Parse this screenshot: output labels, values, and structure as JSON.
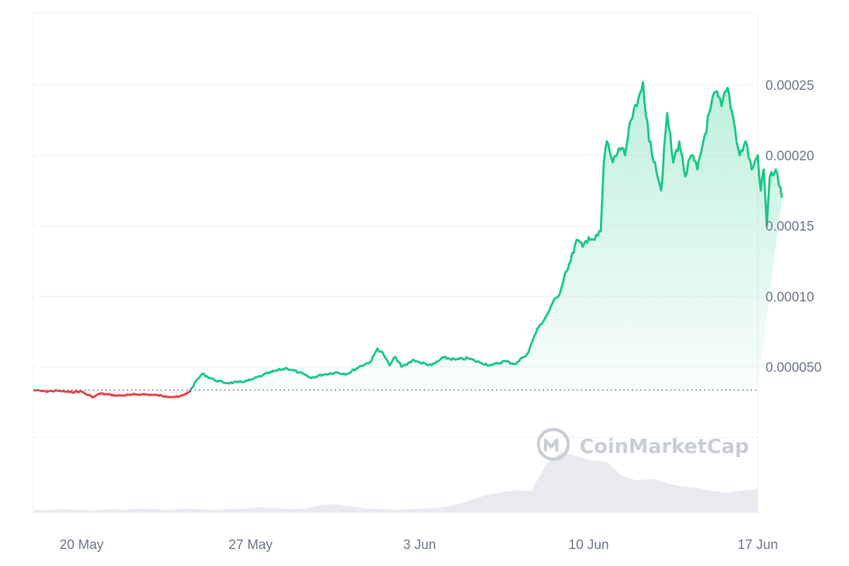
{
  "chart_data": {
    "type": "area",
    "title": "",
    "xlabel": "",
    "ylabel": "",
    "x_range": [
      "2024-05-18",
      "2024-06-17"
    ],
    "ylim": [
      0,
      0.0003
    ],
    "y_ticks": [
      {
        "value": 0.00025,
        "label": "0.00025"
      },
      {
        "value": 0.0002,
        "label": "0.00020"
      },
      {
        "value": 0.00015,
        "label": "0.00015"
      },
      {
        "value": 0.0001,
        "label": "0.00010"
      },
      {
        "value": 5e-05,
        "label": "0.000050"
      }
    ],
    "x_ticks": [
      {
        "date": "2024-05-20",
        "label": "20 May"
      },
      {
        "date": "2024-05-27",
        "label": "27 May"
      },
      {
        "date": "2024-06-03",
        "label": "3 Jun"
      },
      {
        "date": "2024-06-10",
        "label": "10 Jun"
      },
      {
        "date": "2024-06-17",
        "label": "17 Jun"
      }
    ],
    "baseline": 3.35e-05,
    "grid": true,
    "colors": {
      "up": "#16c784",
      "down": "#ea3943",
      "volume": "#e8eaf0",
      "grid": "#eff1f4"
    },
    "series": [
      {
        "values": [
          [
            "2024-05-18 00:00",
            3.35e-05
          ],
          [
            "2024-05-18 12:00",
            3.25e-05
          ],
          [
            "2024-05-19 00:00",
            3.3e-05
          ],
          [
            "2024-05-19 12:00",
            3.2e-05
          ],
          [
            "2024-05-20 00:00",
            3.25e-05
          ],
          [
            "2024-05-20 06:00",
            3e-05
          ],
          [
            "2024-05-20 12:00",
            2.85e-05
          ],
          [
            "2024-05-20 18:00",
            3.1e-05
          ],
          [
            "2024-05-21 00:00",
            3.05e-05
          ],
          [
            "2024-05-21 12:00",
            2.95e-05
          ],
          [
            "2024-05-22 00:00",
            3e-05
          ],
          [
            "2024-05-22 12:00",
            3.05e-05
          ],
          [
            "2024-05-23 00:00",
            3e-05
          ],
          [
            "2024-05-23 12:00",
            2.9e-05
          ],
          [
            "2024-05-24 00:00",
            2.85e-05
          ],
          [
            "2024-05-24 06:00",
            3e-05
          ],
          [
            "2024-05-24 12:00",
            3.3e-05
          ],
          [
            "2024-05-24 18:00",
            4e-05
          ],
          [
            "2024-05-25 00:00",
            4.5e-05
          ],
          [
            "2024-05-25 12:00",
            4.05e-05
          ],
          [
            "2024-05-26 00:00",
            3.85e-05
          ],
          [
            "2024-05-26 12:00",
            3.9e-05
          ],
          [
            "2024-05-27 00:00",
            4.05e-05
          ],
          [
            "2024-05-27 12:00",
            4.4e-05
          ],
          [
            "2024-05-28 00:00",
            4.7e-05
          ],
          [
            "2024-05-28 12:00",
            4.9e-05
          ],
          [
            "2024-05-29 00:00",
            4.6e-05
          ],
          [
            "2024-05-29 12:00",
            4.2e-05
          ],
          [
            "2024-05-30 00:00",
            4.45e-05
          ],
          [
            "2024-05-30 12:00",
            4.6e-05
          ],
          [
            "2024-05-31 00:00",
            4.5e-05
          ],
          [
            "2024-05-31 12:00",
            5e-05
          ],
          [
            "2024-06-01 00:00",
            5.4e-05
          ],
          [
            "2024-06-01 06:00",
            6.3e-05
          ],
          [
            "2024-06-01 12:00",
            5.9e-05
          ],
          [
            "2024-06-01 18:00",
            5.1e-05
          ],
          [
            "2024-06-02 00:00",
            5.7e-05
          ],
          [
            "2024-06-02 06:00",
            5e-05
          ],
          [
            "2024-06-02 12:00",
            5.2e-05
          ],
          [
            "2024-06-02 18:00",
            5.5e-05
          ],
          [
            "2024-06-03 00:00",
            5.3e-05
          ],
          [
            "2024-06-03 12:00",
            5.1e-05
          ],
          [
            "2024-06-04 00:00",
            5.65e-05
          ],
          [
            "2024-06-04 12:00",
            5.5e-05
          ],
          [
            "2024-06-05 00:00",
            5.6e-05
          ],
          [
            "2024-06-05 12:00",
            5.3e-05
          ],
          [
            "2024-06-06 00:00",
            5.1e-05
          ],
          [
            "2024-06-06 12:00",
            5.4e-05
          ],
          [
            "2024-06-07 00:00",
            5.2e-05
          ],
          [
            "2024-06-07 06:00",
            5.65e-05
          ],
          [
            "2024-06-07 12:00",
            6e-05
          ],
          [
            "2024-06-07 18:00",
            7.2e-05
          ],
          [
            "2024-06-08 00:00",
            8e-05
          ],
          [
            "2024-06-08 06:00",
            8.6e-05
          ],
          [
            "2024-06-08 12:00",
            9.5e-05
          ],
          [
            "2024-06-08 18:00",
            0.0001
          ],
          [
            "2024-06-09 00:00",
            0.000115
          ],
          [
            "2024-06-09 06:00",
            0.000125
          ],
          [
            "2024-06-09 12:00",
            0.00014
          ],
          [
            "2024-06-09 18:00",
            0.000135
          ],
          [
            "2024-06-10 00:00",
            0.000142
          ],
          [
            "2024-06-10 06:00",
            0.00014
          ],
          [
            "2024-06-10 12:00",
            0.000146
          ],
          [
            "2024-06-10 15:00",
            0.000195
          ],
          [
            "2024-06-10 18:00",
            0.00021
          ],
          [
            "2024-06-11 00:00",
            0.000195
          ],
          [
            "2024-06-11 06:00",
            0.000205
          ],
          [
            "2024-06-11 12:00",
            0.0002
          ],
          [
            "2024-06-11 18:00",
            0.000225
          ],
          [
            "2024-06-12 00:00",
            0.000235
          ],
          [
            "2024-06-12 06:00",
            0.000252
          ],
          [
            "2024-06-12 12:00",
            0.00021
          ],
          [
            "2024-06-12 18:00",
            0.000195
          ],
          [
            "2024-06-13 00:00",
            0.000175
          ],
          [
            "2024-06-13 06:00",
            0.00023
          ],
          [
            "2024-06-13 12:00",
            0.000195
          ],
          [
            "2024-06-13 18:00",
            0.00021
          ],
          [
            "2024-06-14 00:00",
            0.000185
          ],
          [
            "2024-06-14 06:00",
            0.0002
          ],
          [
            "2024-06-14 12:00",
            0.00019
          ],
          [
            "2024-06-14 18:00",
            0.00021
          ],
          [
            "2024-06-15 00:00",
            0.00023
          ],
          [
            "2024-06-15 06:00",
            0.000245
          ],
          [
            "2024-06-15 12:00",
            0.000235
          ],
          [
            "2024-06-15 18:00",
            0.000248
          ],
          [
            "2024-06-16 00:00",
            0.000225
          ],
          [
            "2024-06-16 06:00",
            0.0002
          ],
          [
            "2024-06-16 12:00",
            0.00021
          ],
          [
            "2024-06-16 18:00",
            0.00019
          ],
          [
            "2024-06-17 00:00",
            0.0002
          ],
          [
            "2024-06-17 03:00",
            0.000175
          ],
          [
            "2024-06-17 06:00",
            0.00019
          ],
          [
            "2024-06-17 09:00",
            0.00015
          ],
          [
            "2024-06-17 12:00",
            0.000185
          ],
          [
            "2024-06-17 18:00",
            0.00019
          ],
          [
            "2024-06-18 00:00",
            0.00017
          ]
        ]
      }
    ],
    "volume_relative": [
      0.04,
      0.03,
      0.05,
      0.04,
      0.03,
      0.05,
      0.04,
      0.06,
      0.05,
      0.04,
      0.06,
      0.05,
      0.04,
      0.05,
      0.06,
      0.08,
      0.07,
      0.05,
      0.06,
      0.12,
      0.13,
      0.1,
      0.06,
      0.05,
      0.04,
      0.05,
      0.06,
      0.08,
      0.12,
      0.2,
      0.28,
      0.33,
      0.36,
      0.35,
      0.8,
      1.0,
      0.92,
      0.85,
      0.83,
      0.6,
      0.52,
      0.55,
      0.48,
      0.42,
      0.4,
      0.35,
      0.32,
      0.36,
      0.38
    ]
  },
  "watermark": {
    "text": "CoinMarketCap",
    "icon": "coinmarketcap-logo-icon"
  }
}
